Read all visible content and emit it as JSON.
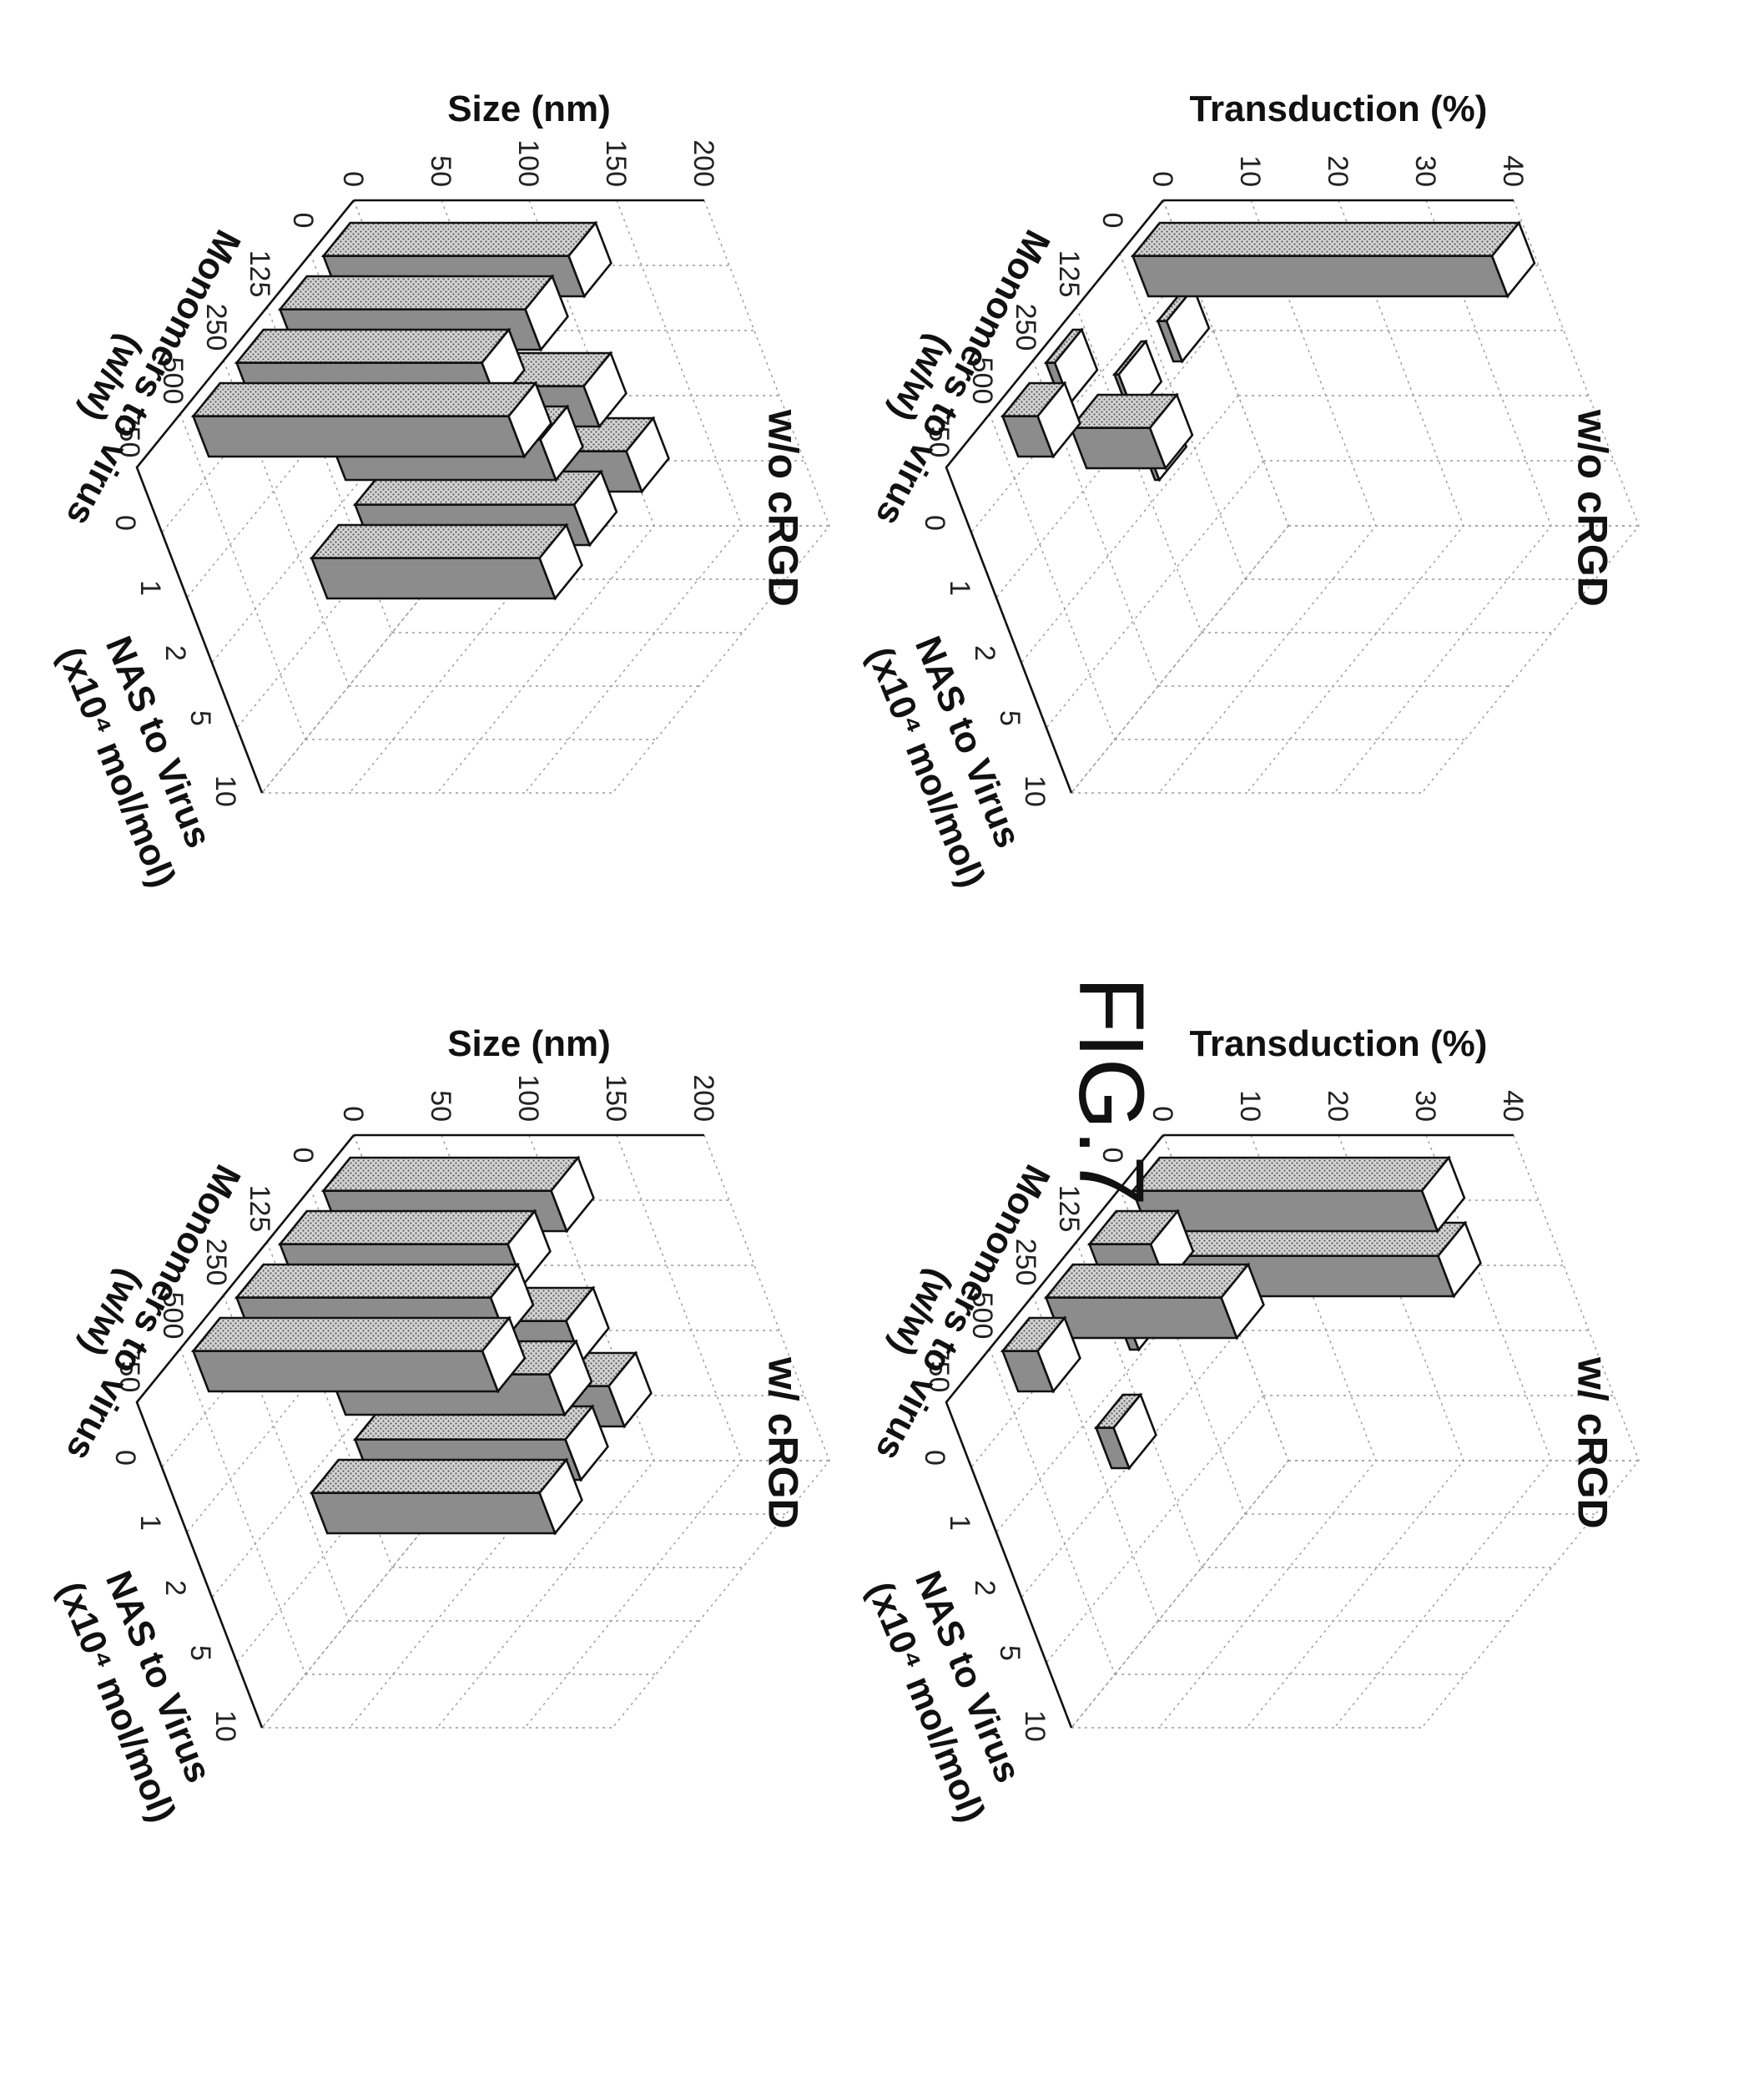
{
  "figure_label": "FIG.7",
  "chart_data": [
    {
      "id": "p1",
      "type": "bar3d",
      "title": "w/ cRGD",
      "zlabel": "Transduction (%)",
      "xlabel": "Monomers to virus\n(w/w)",
      "ylabel": "NAS to Virus\n(x10⁴ mol/mol)",
      "x_ticks": [
        "0",
        "125",
        "250",
        "500",
        "750"
      ],
      "y_ticks": [
        "0",
        "1",
        "2",
        "5",
        "10"
      ],
      "z_ticks": [
        "0",
        "10",
        "20",
        "30",
        "40"
      ],
      "zlim": [
        0,
        40
      ],
      "bars": [
        {
          "x": "0",
          "y": "0",
          "value": 33
        },
        {
          "x": "0",
          "y": "1",
          "value": 32
        },
        {
          "x": "125",
          "y": "0",
          "value": 7
        },
        {
          "x": "125",
          "y": "1",
          "value": 1
        },
        {
          "x": "250",
          "y": "0",
          "value": 20
        },
        {
          "x": "250",
          "y": "2",
          "value": 2
        },
        {
          "x": "500",
          "y": "0",
          "value": 4
        }
      ]
    },
    {
      "id": "p2",
      "type": "bar3d",
      "title": "w/o cRGD",
      "zlabel": "Transduction (%)",
      "xlabel": "Monomers to virus\n(w/w)",
      "ylabel": "NAS to Virus\n(x10⁴ mol/mol)",
      "x_ticks": [
        "0",
        "125",
        "250",
        "500",
        "750"
      ],
      "y_ticks": [
        "0",
        "1",
        "2",
        "5",
        "10"
      ],
      "z_ticks": [
        "0",
        "10",
        "20",
        "30",
        "40"
      ],
      "zlim": [
        0,
        40
      ],
      "bars": [
        {
          "x": "0",
          "y": "0",
          "value": 41
        },
        {
          "x": "0",
          "y": "1",
          "value": 1
        },
        {
          "x": "125",
          "y": "1",
          "value": 0.5
        },
        {
          "x": "125",
          "y": "2",
          "value": 0.5
        },
        {
          "x": "250",
          "y": "0",
          "value": 1
        },
        {
          "x": "250",
          "y": "1",
          "value": 9
        },
        {
          "x": "500",
          "y": "0",
          "value": 4
        }
      ]
    },
    {
      "id": "p3",
      "type": "bar3d",
      "title": "w/ cRGD",
      "zlabel": "Size (nm)",
      "xlabel": "Monomers to virus\n(w/w)",
      "ylabel": "NAS to Virus\n(x10⁴ mol/mol)",
      "x_ticks": [
        "0",
        "125",
        "250",
        "500",
        "750"
      ],
      "y_ticks": [
        "0",
        "1",
        "2",
        "5",
        "10"
      ],
      "z_ticks": [
        "0",
        "50",
        "100",
        "150",
        "200"
      ],
      "zlim": [
        0,
        200
      ],
      "bars": [
        {
          "x": "0",
          "y": "0",
          "value": 130
        },
        {
          "x": "0",
          "y": "2",
          "value": 110
        },
        {
          "x": "0",
          "y": "5",
          "value": 120
        },
        {
          "x": "125",
          "y": "0",
          "value": 130
        },
        {
          "x": "125",
          "y": "2",
          "value": 125
        },
        {
          "x": "125",
          "y": "5",
          "value": 120
        },
        {
          "x": "250",
          "y": "0",
          "value": 145
        },
        {
          "x": "250",
          "y": "5",
          "value": 130
        },
        {
          "x": "500",
          "y": "0",
          "value": 165
        }
      ]
    },
    {
      "id": "p4",
      "type": "bar3d",
      "title": "w/o cRGD",
      "zlabel": "Size (nm)",
      "xlabel": "Monomers to virus\n(w/w)",
      "ylabel": "NAS to Virus\n(x10⁴ mol/mol)",
      "x_ticks": [
        "0",
        "125",
        "250",
        "500",
        "750"
      ],
      "y_ticks": [
        "0",
        "1",
        "2",
        "5",
        "10"
      ],
      "z_ticks": [
        "0",
        "50",
        "100",
        "150",
        "200"
      ],
      "zlim": [
        0,
        200
      ],
      "bars": [
        {
          "x": "0",
          "y": "0",
          "value": 140
        },
        {
          "x": "0",
          "y": "2",
          "value": 120
        },
        {
          "x": "0",
          "y": "5",
          "value": 130
        },
        {
          "x": "125",
          "y": "0",
          "value": 140
        },
        {
          "x": "125",
          "y": "2",
          "value": 120
        },
        {
          "x": "125",
          "y": "5",
          "value": 125
        },
        {
          "x": "250",
          "y": "0",
          "value": 140
        },
        {
          "x": "250",
          "y": "5",
          "value": 130
        },
        {
          "x": "500",
          "y": "0",
          "value": 180
        }
      ]
    }
  ]
}
